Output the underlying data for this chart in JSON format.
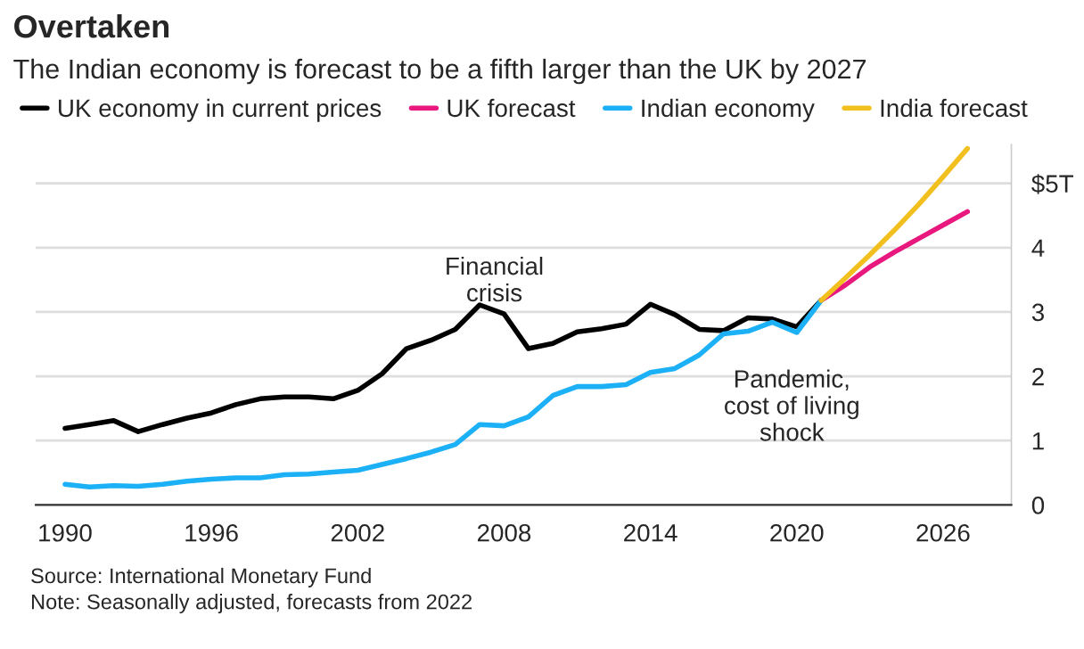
{
  "chart_data": {
    "type": "line",
    "title": "Overtaken",
    "subtitle": "The Indian economy is forecast to be a fifth larger than the UK by 2027",
    "x": [
      1990,
      1991,
      1992,
      1993,
      1994,
      1995,
      1996,
      1997,
      1998,
      1999,
      2000,
      2001,
      2002,
      2003,
      2004,
      2005,
      2006,
      2007,
      2008,
      2009,
      2010,
      2011,
      2012,
      2013,
      2014,
      2015,
      2016,
      2017,
      2018,
      2019,
      2020,
      2021
    ],
    "series": [
      {
        "name": "UK economy in current prices",
        "color": "#000000",
        "values": [
          1.19,
          1.25,
          1.31,
          1.14,
          1.25,
          1.35,
          1.43,
          1.56,
          1.65,
          1.68,
          1.68,
          1.65,
          1.78,
          2.04,
          2.43,
          2.56,
          2.73,
          3.11,
          2.97,
          2.43,
          2.51,
          2.69,
          2.74,
          2.81,
          3.12,
          2.96,
          2.73,
          2.71,
          2.91,
          2.89,
          2.77,
          3.18
        ]
      },
      {
        "name": "UK forecast",
        "color": "#e8187f",
        "x": [
          2021,
          2022,
          2023,
          2024,
          2025,
          2026,
          2027
        ],
        "values": [
          3.18,
          3.42,
          3.7,
          3.93,
          4.14,
          4.35,
          4.56
        ]
      },
      {
        "name": "Indian economy",
        "color": "#1cb0f6",
        "values": [
          0.32,
          0.28,
          0.3,
          0.29,
          0.32,
          0.37,
          0.4,
          0.42,
          0.42,
          0.47,
          0.48,
          0.51,
          0.54,
          0.63,
          0.72,
          0.82,
          0.94,
          1.25,
          1.23,
          1.37,
          1.7,
          1.84,
          1.84,
          1.87,
          2.06,
          2.12,
          2.33,
          2.66,
          2.7,
          2.84,
          2.68,
          3.18
        ]
      },
      {
        "name": "India forecast",
        "color": "#f2c01e",
        "x": [
          2021,
          2022,
          2023,
          2024,
          2025,
          2026,
          2027
        ],
        "values": [
          3.18,
          3.53,
          3.89,
          4.27,
          4.67,
          5.1,
          5.54
        ]
      }
    ],
    "xlim": [
      1988.8,
      2028.8
    ],
    "xticks": [
      1990,
      1996,
      2002,
      2008,
      2014,
      2020,
      2026
    ],
    "ylim": [
      0,
      5.6
    ],
    "yticks": [
      0,
      1,
      2,
      3,
      4,
      {
        "value": 5,
        "label": "$5T"
      }
    ],
    "grid": "y",
    "legend": "top left",
    "annotations": [
      "Financial\ncrisis",
      "Pandemic,\ncost of living\nshock",
      "Source: International Monetary Fund",
      "Note: Seasonally adjusted, forecasts from 2022"
    ]
  }
}
